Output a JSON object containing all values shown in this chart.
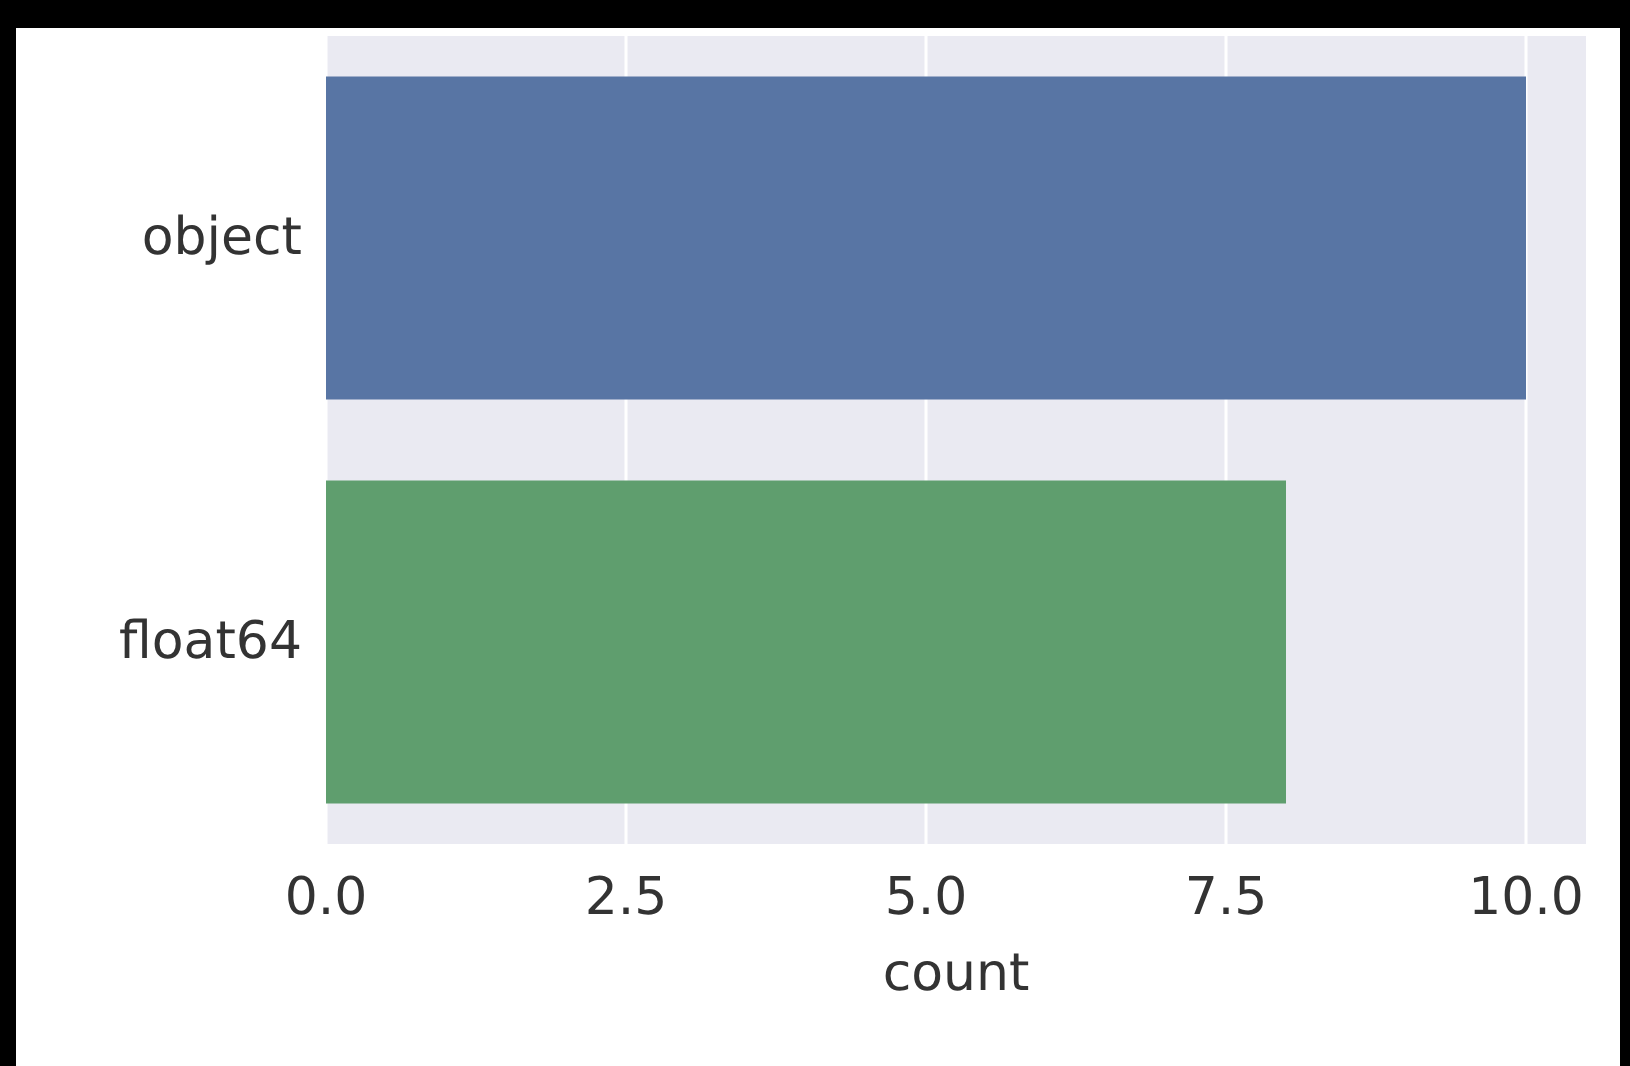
{
  "chart_data": {
    "type": "bar",
    "orientation": "horizontal",
    "categories": [
      "object",
      "float64"
    ],
    "values": [
      10,
      8
    ],
    "colors": [
      "#5875a4",
      "#5f9e6e"
    ],
    "xlabel": "count",
    "xlim": [
      0,
      10.5
    ],
    "xticks": [
      {
        "value": 0,
        "label": "0.0"
      },
      {
        "value": 2.5,
        "label": "2.5"
      },
      {
        "value": 5,
        "label": "5.0"
      },
      {
        "value": 7.5,
        "label": "7.5"
      },
      {
        "value": 10,
        "label": "10.0"
      }
    ],
    "grid": "x"
  }
}
